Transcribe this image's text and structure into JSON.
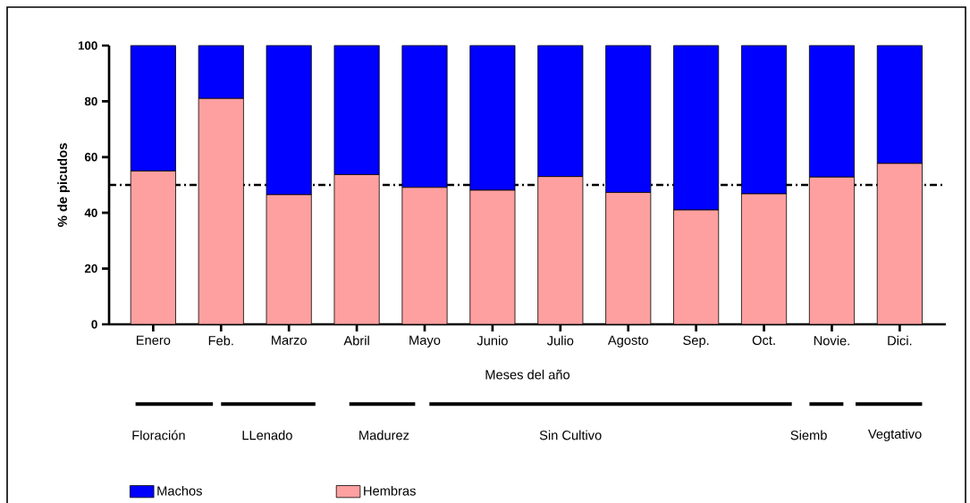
{
  "chart_data": {
    "type": "bar",
    "stacked": true,
    "xlabel": "Meses del año",
    "ylabel": "% de picudos",
    "categories": [
      "Enero",
      "Feb.",
      "Marzo",
      "Abril",
      "Mayo",
      "Junio",
      "Julio",
      "Agosto",
      "Sep.",
      "Oct.",
      "Novie.",
      "Dici."
    ],
    "series": [
      {
        "name": "Hembras",
        "color": "#ffa0a0",
        "values": [
          55,
          81,
          46.5,
          53.7,
          49.1,
          48.1,
          53,
          47.3,
          41,
          46.8,
          52.8,
          57.7
        ]
      },
      {
        "name": "Machos",
        "color": "#0000ff",
        "values": [
          45,
          19,
          53.5,
          46.3,
          50.9,
          51.9,
          47,
          52.7,
          59,
          53.2,
          47.2,
          42.3
        ]
      }
    ],
    "ylim": [
      0,
      100
    ],
    "yticks": [
      0,
      20,
      40,
      60,
      80,
      100
    ],
    "ref_lines": [
      {
        "axis": "y",
        "value": 50,
        "line_style": "dashdotted",
        "color": "#000000"
      }
    ],
    "annotations": [
      "Floración",
      "LLenado",
      "Madurez",
      "Sin Cultivo",
      "Siemb",
      "Vegtativo"
    ],
    "legend": "bottom left"
  }
}
